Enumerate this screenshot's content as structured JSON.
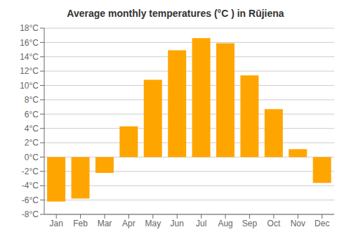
{
  "chart_data": {
    "type": "bar",
    "title": "Average monthly temperatures (°C ) in Rūjiena",
    "categories": [
      "Jan",
      "Feb",
      "Mar",
      "Apr",
      "May",
      "Jun",
      "Jul",
      "Aug",
      "Sep",
      "Oct",
      "Nov",
      "Dec"
    ],
    "values": [
      -6.2,
      -5.8,
      -2.2,
      4.3,
      10.8,
      14.9,
      16.6,
      15.9,
      11.4,
      6.7,
      1.1,
      -3.6
    ],
    "color": "#FFA500",
    "ylim": [
      -8,
      18
    ],
    "yticks": [
      {
        "value": -8,
        "label": "-8°C"
      },
      {
        "value": -6,
        "label": "-6°C"
      },
      {
        "value": -4,
        "label": "-4°C"
      },
      {
        "value": -2,
        "label": "-2°C"
      },
      {
        "value": 0,
        "label": "0°C"
      },
      {
        "value": 2,
        "label": "2°C"
      },
      {
        "value": 4,
        "label": "4°C"
      },
      {
        "value": 6,
        "label": "6°C"
      },
      {
        "value": 8,
        "label": "8°C"
      },
      {
        "value": 10,
        "label": "10°C"
      },
      {
        "value": 12,
        "label": "12°C"
      },
      {
        "value": 14,
        "label": "14°C"
      },
      {
        "value": 16,
        "label": "16°C"
      },
      {
        "value": 18,
        "label": "18°C"
      }
    ],
    "grid": true
  }
}
